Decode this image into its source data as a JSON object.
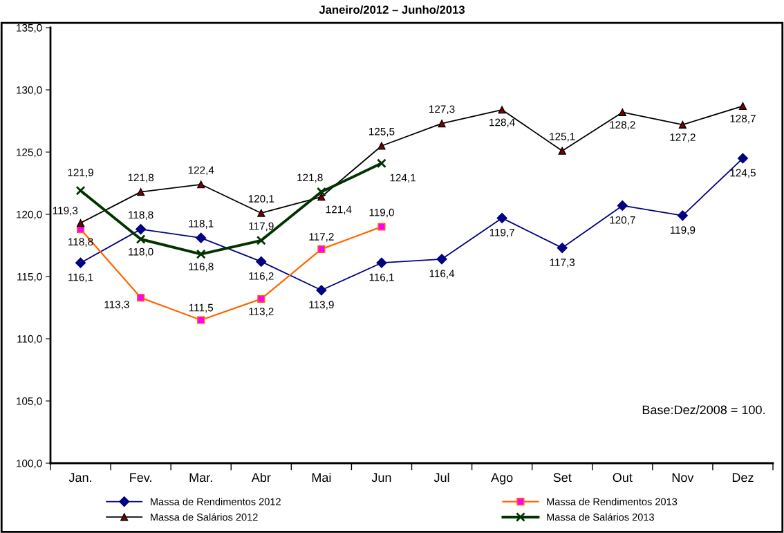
{
  "chart_data": {
    "type": "line",
    "title": "Janeiro/2012 – Junho/2013",
    "categories": [
      "Jan.",
      "Fev.",
      "Mar.",
      "Abr",
      "Mai",
      "Jun",
      "Jul",
      "Ago",
      "Set",
      "Out",
      "Nov",
      "Dez"
    ],
    "series": [
      {
        "name": "Massa de Rendimentos 2012",
        "color": "#000080",
        "marker": "diamond",
        "values": [
          116.1,
          118.8,
          118.1,
          116.2,
          113.9,
          116.1,
          116.4,
          119.7,
          117.3,
          120.7,
          119.9,
          124.5
        ],
        "value_labels": [
          "116,1",
          "118,8",
          "118,1",
          "116,2",
          "113,9",
          "116,1",
          "116,4",
          "119,7",
          "117,3",
          "120,7",
          "119,9",
          "124,5"
        ]
      },
      {
        "name": "Massa de Rendimentos 2013",
        "color": "#ff6600",
        "marker": "square",
        "values": [
          118.8,
          113.3,
          111.5,
          113.2,
          117.2,
          119.0,
          null,
          null,
          null,
          null,
          null,
          null
        ],
        "value_labels": [
          "118,8",
          "113,3",
          "111,5",
          "113,2",
          "117,2",
          "119,0",
          null,
          null,
          null,
          null,
          null,
          null
        ]
      },
      {
        "name": "Massa de Salários 2012",
        "color": "#000000",
        "marker": "triangle",
        "values": [
          119.3,
          121.8,
          122.4,
          120.1,
          121.4,
          125.5,
          127.3,
          128.4,
          125.1,
          128.2,
          127.2,
          128.7
        ],
        "value_labels": [
          "119,3",
          "121,8",
          "122,4",
          "120,1",
          "121,4",
          "125,5",
          "127,3",
          "128,4",
          "125,1",
          "128,2",
          "127,2",
          "128,7"
        ]
      },
      {
        "name": "Massa de Salários 2013",
        "color": "#003300",
        "marker": "cross",
        "values": [
          121.9,
          118.0,
          116.8,
          117.9,
          121.8,
          124.1,
          null,
          null,
          null,
          null,
          null,
          null
        ],
        "value_labels": [
          "121,9",
          "118,0",
          "116,8",
          "117,9",
          "121,8",
          "124,1",
          null,
          null,
          null,
          null,
          null,
          null
        ]
      }
    ],
    "ylim": [
      100,
      135
    ],
    "yticks": [
      {
        "value": 100,
        "label": "100,0"
      },
      {
        "value": 105,
        "label": "105,0"
      },
      {
        "value": 110,
        "label": "110,0"
      },
      {
        "value": 115,
        "label": "115,0"
      },
      {
        "value": 120,
        "label": "120,0"
      },
      {
        "value": 125,
        "label": "125,0"
      },
      {
        "value": 130,
        "label": "130,0"
      },
      {
        "value": 135,
        "label": "135,0"
      }
    ],
    "annotations": [
      "Base:Dez/2008 = 100."
    ],
    "grid": false,
    "legend": "bottom"
  }
}
